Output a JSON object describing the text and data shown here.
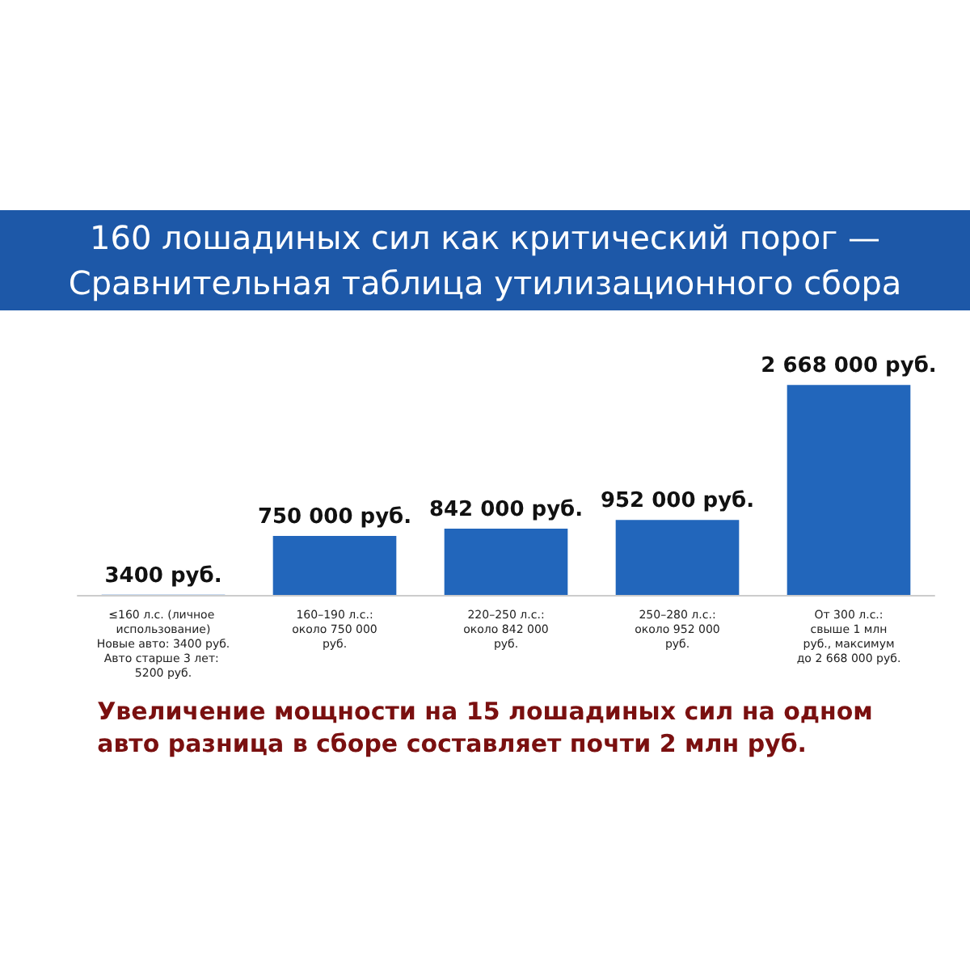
{
  "chart_data": {
    "type": "bar",
    "title": "160 лошадиных сил как критический порог —\nСравнительная таблица утилизационного сбора",
    "categories": [
      "≤160 л.с. (личное использование)\nНовые авто: 3400 руб.\nАвто старше 3 лет: 5200 руб.",
      "160–190 л.с.:\nоколо 750 000\nруб.",
      "220–250 л.с.:\nоколо 842 000\nруб.",
      "250–280 л.с.:\nоколо 952 000\nруб.",
      "От 300 л.с.:\nсвыше 1 млн\nруб., максимум\nдо 2 668 000 руб."
    ],
    "values": [
      3400,
      750000,
      842000,
      952000,
      2668000
    ],
    "value_labels": [
      "3400 руб.",
      "750 000 руб.",
      "842 000 руб.",
      "952 000 руб.",
      "2 668 000 руб."
    ],
    "tick_labels": "x",
    "color": "#2266bb",
    "annotations": [
      "Увеличение мощности на 15 лошадиных сил на одном\nавто разница в сборе составляет почти 2 млн руб."
    ]
  }
}
